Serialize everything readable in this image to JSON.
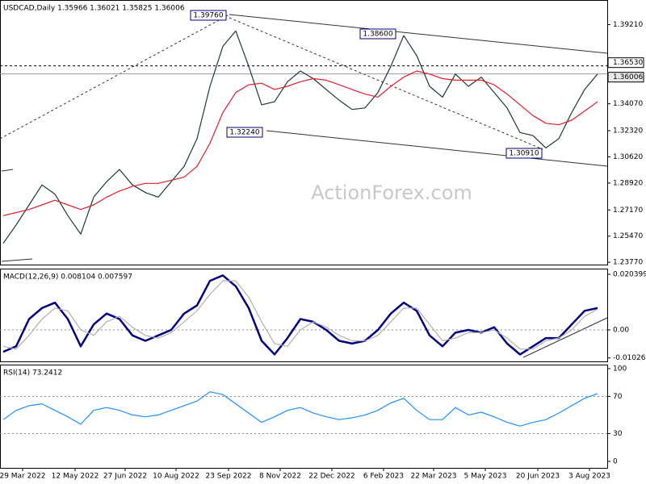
{
  "chart_data": [
    {
      "type": "line",
      "title": "USDCAD,Daily  1.35966 1.36021 1.35825 1.36006",
      "x": [
        2,
        10,
        18,
        26,
        34,
        42,
        50,
        58,
        66,
        74,
        82,
        90,
        98,
        106,
        114,
        122,
        130,
        138,
        146,
        154,
        162,
        170,
        178,
        186,
        194,
        202,
        210,
        218,
        226,
        234,
        242,
        250,
        258,
        266,
        274,
        282,
        290,
        298,
        306,
        314,
        322,
        330,
        338,
        346,
        354,
        362,
        370
      ],
      "xlim": [
        0,
        376
      ],
      "ylim": [
        1.2362,
        1.4081
      ],
      "yticks": [
        {
          "value": 1.3921,
          "label": "1.39210"
        },
        {
          "value": 1.3407,
          "label": "1.34070"
        },
        {
          "value": 1.3232,
          "label": "1.32320"
        },
        {
          "value": 1.3062,
          "label": "1.30620"
        },
        {
          "value": 1.2892,
          "label": "1.28920"
        },
        {
          "value": 1.2717,
          "label": "1.27170"
        },
        {
          "value": 1.2547,
          "label": "1.25470"
        },
        {
          "value": 1.2377,
          "label": "1.23770"
        }
      ],
      "price_lines": [
        {
          "value": 1.3653,
          "label": "1.36530",
          "style": "dotted"
        },
        {
          "value": 1.36006,
          "label": "1.36006",
          "style": "solid"
        }
      ],
      "annotations": [
        "1.39760",
        "1.38600",
        "1.32240",
        "1.30910"
      ],
      "watermark": "ActionForex.com",
      "series": [
        {
          "color": "#1c3b2c",
          "values": [
            1.25,
            1.262,
            1.275,
            1.288,
            1.282,
            1.268,
            1.256,
            1.28,
            1.29,
            1.298,
            1.288,
            1.283,
            1.28,
            1.29,
            1.3,
            1.318,
            1.352,
            1.378,
            1.388,
            1.365,
            1.34,
            1.342,
            1.355,
            1.362,
            1.357,
            1.35,
            1.343,
            1.337,
            1.338,
            1.348,
            1.365,
            1.385,
            1.372,
            1.352,
            1.345,
            1.36,
            1.352,
            1.358,
            1.348,
            1.338,
            1.322,
            1.32,
            1.312,
            1.318,
            1.335,
            1.35,
            1.36
          ]
        },
        {
          "color": "#e0202a",
          "values": [
            1.268,
            1.27,
            1.272,
            1.275,
            1.278,
            1.275,
            1.272,
            1.275,
            1.28,
            1.284,
            1.287,
            1.289,
            1.289,
            1.291,
            1.293,
            1.3,
            1.315,
            1.335,
            1.348,
            1.353,
            1.354,
            1.35,
            1.352,
            1.355,
            1.357,
            1.356,
            1.353,
            1.35,
            1.347,
            1.345,
            1.352,
            1.358,
            1.362,
            1.36,
            1.357,
            1.356,
            1.356,
            1.356,
            1.353,
            1.347,
            1.34,
            1.333,
            1.328,
            1.327,
            1.33,
            1.336,
            1.342
          ]
        }
      ]
    },
    {
      "type": "line",
      "title": "MACD(12,26,9) 0.008104 0.007597",
      "x": [
        2,
        10,
        18,
        26,
        34,
        42,
        50,
        58,
        66,
        74,
        82,
        90,
        98,
        106,
        114,
        122,
        130,
        138,
        146,
        154,
        162,
        170,
        178,
        186,
        194,
        202,
        210,
        218,
        226,
        234,
        242,
        250,
        258,
        266,
        274,
        282,
        290,
        298,
        306,
        314,
        322,
        330,
        338,
        346,
        354,
        362,
        370
      ],
      "xlim": [
        0,
        376
      ],
      "ylim": [
        -0.01153,
        0.02247
      ],
      "yticks": [
        0.020399,
        {
          "value": 0,
          "label": "0.00"
        },
        -0.01026
      ],
      "grid_levels": [
        0
      ],
      "series": [
        {
          "color": "#000080",
          "values": [
            -0.008,
            -0.006,
            0.004,
            0.008,
            0.01,
            0.004,
            -0.006,
            0.002,
            0.006,
            0.004,
            -0.002,
            -0.004,
            -0.002,
            0.0,
            0.006,
            0.009,
            0.018,
            0.02,
            0.016,
            0.008,
            -0.004,
            -0.009,
            -0.003,
            0.004,
            0.003,
            0.0,
            -0.004,
            -0.005,
            -0.004,
            0.0,
            0.006,
            0.01,
            0.007,
            -0.002,
            -0.006,
            -0.001,
            0.0,
            -0.001,
            0.001,
            -0.005,
            -0.009,
            -0.006,
            -0.003,
            -0.003,
            0.002,
            0.007,
            0.008
          ]
        },
        {
          "color": "#b0b0b0",
          "values": [
            -0.006,
            -0.007,
            -0.002,
            0.004,
            0.008,
            0.007,
            0.0,
            -0.002,
            0.003,
            0.005,
            0.001,
            -0.002,
            -0.003,
            -0.001,
            0.003,
            0.007,
            0.013,
            0.018,
            0.018,
            0.012,
            0.003,
            -0.005,
            -0.006,
            0.0,
            0.003,
            0.001,
            -0.002,
            -0.004,
            -0.004,
            -0.002,
            0.003,
            0.008,
            0.008,
            0.002,
            -0.004,
            -0.003,
            -0.001,
            -0.001,
            0.0,
            -0.003,
            -0.007,
            -0.007,
            -0.004,
            -0.003,
            0.0,
            0.005,
            0.0076
          ]
        }
      ]
    },
    {
      "type": "line",
      "title": "RSI(14) 73.2412",
      "x": [
        2,
        10,
        18,
        26,
        34,
        42,
        50,
        58,
        66,
        74,
        82,
        90,
        98,
        106,
        114,
        122,
        130,
        138,
        146,
        154,
        162,
        170,
        178,
        186,
        194,
        202,
        210,
        218,
        226,
        234,
        242,
        250,
        258,
        266,
        274,
        282,
        290,
        298,
        306,
        314,
        322,
        330,
        338,
        346,
        354,
        362,
        370
      ],
      "xlim": [
        0,
        376
      ],
      "ylim": [
        -7,
        104.3
      ],
      "yticks": [
        100,
        70,
        30,
        0
      ],
      "grid_levels": [
        70,
        30
      ],
      "xticks": [
        {
          "value": 14,
          "label": "29 Mar 2022"
        },
        {
          "value": 46.5,
          "label": "12 May 2022"
        },
        {
          "value": 77.5,
          "label": "27 Jun 2022"
        },
        {
          "value": 109,
          "label": "10 Aug 2022"
        },
        {
          "value": 141.5,
          "label": "23 Sep 2022"
        },
        {
          "value": 173.5,
          "label": "8 Nov 2022"
        },
        {
          "value": 205.5,
          "label": "22 Dec 2022"
        },
        {
          "value": 237.5,
          "label": "6 Feb 2023"
        },
        {
          "value": 268.5,
          "label": "22 Mar 2023"
        },
        {
          "value": 300.5,
          "label": "5 May 2023"
        },
        {
          "value": 333,
          "label": "20 Jun 2023"
        },
        {
          "value": 365,
          "label": "3 Aug 2023"
        }
      ],
      "series": [
        {
          "color": "#1e90ff",
          "values": [
            45,
            55,
            60,
            62,
            55,
            48,
            40,
            55,
            58,
            55,
            50,
            48,
            50,
            55,
            60,
            65,
            75,
            72,
            62,
            52,
            42,
            48,
            55,
            58,
            52,
            48,
            45,
            47,
            50,
            55,
            63,
            68,
            55,
            45,
            45,
            58,
            50,
            53,
            48,
            42,
            38,
            42,
            45,
            52,
            60,
            68,
            73
          ]
        }
      ]
    }
  ]
}
